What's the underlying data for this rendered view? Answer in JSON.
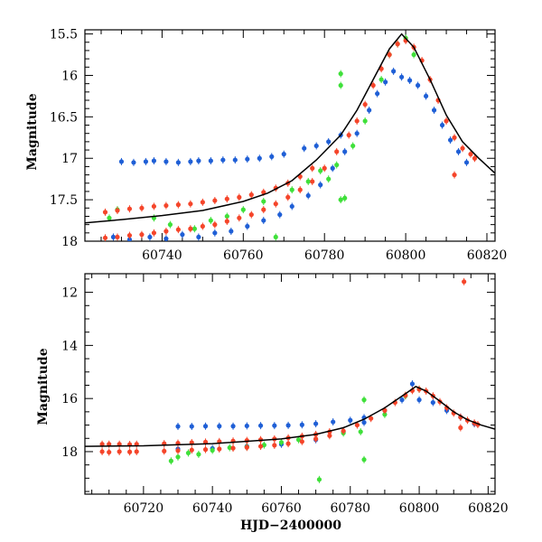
{
  "figure": {
    "xlabel": "HJD−2400000",
    "ylabel_top": "Magnitude",
    "ylabel_bottom": "Magnitude"
  },
  "chart_data": [
    {
      "type": "scatter",
      "panel": "top",
      "xlim": [
        60721,
        60822
      ],
      "ylim": [
        18.0,
        15.45
      ],
      "y_inverted": true,
      "xticks": [
        60740,
        60760,
        60780,
        60800,
        60820
      ],
      "yticks": [
        15.5,
        16,
        16.5,
        17,
        17.5,
        18
      ],
      "ylabel": "Magnitude",
      "series": [
        {
          "color": "#1f5fd6",
          "points": [
            [
              60730,
              17.04
            ],
            [
              60733,
              17.05
            ],
            [
              60736,
              17.04
            ],
            [
              60738,
              17.03
            ],
            [
              60741,
              17.04
            ],
            [
              60744,
              17.05
            ],
            [
              60747,
              17.04
            ],
            [
              60749,
              17.03
            ],
            [
              60752,
              17.03
            ],
            [
              60755,
              17.02
            ],
            [
              60758,
              17.02
            ],
            [
              60761,
              17.01
            ],
            [
              60764,
              17.0
            ],
            [
              60767,
              16.98
            ],
            [
              60770,
              16.95
            ],
            [
              60775,
              16.88
            ],
            [
              60778,
              16.85
            ],
            [
              60781,
              16.8
            ],
            [
              60784,
              16.72
            ],
            [
              60728,
              17.95
            ],
            [
              60732,
              17.98
            ],
            [
              60737,
              17.95
            ],
            [
              60741,
              17.97
            ],
            [
              60745,
              17.92
            ],
            [
              60749,
              17.95
            ],
            [
              60753,
              17.9
            ],
            [
              60757,
              17.88
            ],
            [
              60761,
              17.82
            ],
            [
              60765,
              17.75
            ],
            [
              60769,
              17.68
            ],
            [
              60772,
              17.58
            ],
            [
              60776,
              17.45
            ],
            [
              60779,
              17.32
            ],
            [
              60782,
              17.12
            ],
            [
              60785,
              16.92
            ],
            [
              60788,
              16.7
            ],
            [
              60791,
              16.42
            ],
            [
              60793,
              16.22
            ],
            [
              60795,
              16.08
            ],
            [
              60797,
              15.95
            ],
            [
              60799,
              16.02
            ],
            [
              60801,
              16.06
            ],
            [
              60803,
              16.12
            ],
            [
              60805,
              16.25
            ],
            [
              60807,
              16.42
            ],
            [
              60809,
              16.6
            ],
            [
              60811,
              16.78
            ],
            [
              60813,
              16.92
            ],
            [
              60815,
              17.05
            ]
          ]
        },
        {
          "color": "#3fe03a",
          "points": [
            [
              60727,
              17.72
            ],
            [
              60729,
              17.62
            ],
            [
              60738,
              17.72
            ],
            [
              60742,
              17.8
            ],
            [
              60748,
              17.85
            ],
            [
              60752,
              17.75
            ],
            [
              60756,
              17.7
            ],
            [
              60760,
              17.62
            ],
            [
              60765,
              17.52
            ],
            [
              60768,
              17.95
            ],
            [
              60772,
              17.38
            ],
            [
              60776,
              17.28
            ],
            [
              60779,
              17.15
            ],
            [
              60781,
              17.25
            ],
            [
              60783,
              17.08
            ],
            [
              60784,
              17.5
            ],
            [
              60785,
              17.48
            ],
            [
              60784,
              16.12
            ],
            [
              60784,
              15.98
            ],
            [
              60787,
              16.85
            ],
            [
              60790,
              16.55
            ],
            [
              60794,
              16.05
            ],
            [
              60796,
              15.75
            ],
            [
              60798,
              15.62
            ],
            [
              60800,
              15.55
            ],
            [
              60802,
              15.75
            ]
          ]
        },
        {
          "color": "#f5452a",
          "points": [
            [
              60726,
              17.65
            ],
            [
              60729,
              17.63
            ],
            [
              60732,
              17.61
            ],
            [
              60735,
              17.6
            ],
            [
              60738,
              17.58
            ],
            [
              60741,
              17.57
            ],
            [
              60744,
              17.56
            ],
            [
              60747,
              17.55
            ],
            [
              60750,
              17.53
            ],
            [
              60753,
              17.51
            ],
            [
              60756,
              17.49
            ],
            [
              60759,
              17.47
            ],
            [
              60762,
              17.44
            ],
            [
              60765,
              17.41
            ],
            [
              60768,
              17.36
            ],
            [
              60771,
              17.3
            ],
            [
              60774,
              17.22
            ],
            [
              60777,
              17.12
            ],
            [
              60726,
              17.96
            ],
            [
              60729,
              17.95
            ],
            [
              60732,
              17.93
            ],
            [
              60735,
              17.92
            ],
            [
              60738,
              17.9
            ],
            [
              60741,
              17.88
            ],
            [
              60744,
              17.86
            ],
            [
              60747,
              17.85
            ],
            [
              60750,
              17.82
            ],
            [
              60753,
              17.8
            ],
            [
              60756,
              17.76
            ],
            [
              60759,
              17.72
            ],
            [
              60762,
              17.68
            ],
            [
              60765,
              17.62
            ],
            [
              60768,
              17.55
            ],
            [
              60771,
              17.47
            ],
            [
              60774,
              17.38
            ],
            [
              60777,
              17.28
            ],
            [
              60780,
              17.12
            ],
            [
              60783,
              16.92
            ],
            [
              60786,
              16.72
            ],
            [
              60788,
              16.55
            ],
            [
              60790,
              16.35
            ],
            [
              60792,
              16.12
            ],
            [
              60794,
              15.92
            ],
            [
              60796,
              15.75
            ],
            [
              60798,
              15.62
            ],
            [
              60800,
              15.58
            ],
            [
              60802,
              15.66
            ],
            [
              60804,
              15.82
            ],
            [
              60806,
              16.05
            ],
            [
              60808,
              16.3
            ],
            [
              60810,
              16.55
            ],
            [
              60812,
              16.75
            ],
            [
              60814,
              16.88
            ],
            [
              60816,
              16.95
            ],
            [
              60817,
              17.0
            ],
            [
              60812,
              17.2
            ]
          ]
        }
      ],
      "model_curve": [
        [
          60721,
          17.78
        ],
        [
          60730,
          17.74
        ],
        [
          60740,
          17.69
        ],
        [
          60750,
          17.63
        ],
        [
          60760,
          17.52
        ],
        [
          60766,
          17.42
        ],
        [
          60772,
          17.27
        ],
        [
          60778,
          17.02
        ],
        [
          60784,
          16.72
        ],
        [
          60788,
          16.42
        ],
        [
          60792,
          16.05
        ],
        [
          60796,
          15.68
        ],
        [
          60799,
          15.5
        ],
        [
          60802,
          15.66
        ],
        [
          60806,
          16.05
        ],
        [
          60810,
          16.48
        ],
        [
          60814,
          16.8
        ],
        [
          60818,
          17.0
        ],
        [
          60822,
          17.18
        ]
      ]
    },
    {
      "type": "scatter",
      "panel": "bottom",
      "xlim": [
        60703,
        60822
      ],
      "ylim": [
        19.6,
        11.3
      ],
      "y_inverted": true,
      "xticks": [
        60720,
        60740,
        60760,
        60780,
        60800,
        60820
      ],
      "yticks": [
        12,
        14,
        16,
        18
      ],
      "ylabel": "Magnitude",
      "xlabel": "HJD−2400000",
      "series": [
        {
          "color": "#1f5fd6",
          "points": [
            [
              60730,
              17.05
            ],
            [
              60734,
              17.05
            ],
            [
              60738,
              17.04
            ],
            [
              60742,
              17.04
            ],
            [
              60746,
              17.04
            ],
            [
              60750,
              17.03
            ],
            [
              60754,
              17.02
            ],
            [
              60758,
              17.02
            ],
            [
              60762,
              17.01
            ],
            [
              60766,
              16.99
            ],
            [
              60770,
              16.95
            ],
            [
              60775,
              16.88
            ],
            [
              60780,
              16.82
            ],
            [
              60784,
              16.72
            ],
            [
              60730,
              17.9
            ],
            [
              60740,
              17.88
            ],
            [
              60750,
              17.8
            ],
            [
              60760,
              17.72
            ],
            [
              60770,
              17.55
            ],
            [
              60778,
              17.25
            ],
            [
              60784,
              16.9
            ],
            [
              60790,
              16.45
            ],
            [
              60795,
              16.05
            ],
            [
              60798,
              15.45
            ],
            [
              60800,
              16.05
            ],
            [
              60804,
              16.15
            ],
            [
              60808,
              16.45
            ],
            [
              60812,
              16.7
            ],
            [
              60816,
              16.95
            ]
          ]
        },
        {
          "color": "#3fe03a",
          "points": [
            [
              60728,
              18.35
            ],
            [
              60730,
              18.2
            ],
            [
              60733,
              18.05
            ],
            [
              60736,
              18.1
            ],
            [
              60740,
              17.95
            ],
            [
              60745,
              17.85
            ],
            [
              60750,
              17.82
            ],
            [
              60755,
              17.75
            ],
            [
              60760,
              17.65
            ],
            [
              60765,
              17.55
            ],
            [
              60771,
              19.05
            ],
            [
              60778,
              17.3
            ],
            [
              60783,
              17.25
            ],
            [
              60784,
              16.05
            ],
            [
              60784,
              18.3
            ],
            [
              60790,
              16.6
            ],
            [
              60796,
              15.9
            ],
            [
              60800,
              15.65
            ]
          ]
        },
        {
          "color": "#f5452a",
          "points": [
            [
              60708,
              17.72
            ],
            [
              60710,
              17.72
            ],
            [
              60713,
              17.72
            ],
            [
              60716,
              17.73
            ],
            [
              60718,
              17.72
            ],
            [
              60708,
              18.0
            ],
            [
              60710,
              18.02
            ],
            [
              60713,
              18.0
            ],
            [
              60716,
              18.01
            ],
            [
              60718,
              18.0
            ],
            [
              60726,
              17.7
            ],
            [
              60730,
              17.68
            ],
            [
              60734,
              17.66
            ],
            [
              60738,
              17.64
            ],
            [
              60742,
              17.62
            ],
            [
              60746,
              17.6
            ],
            [
              60750,
              17.58
            ],
            [
              60754,
              17.55
            ],
            [
              60758,
              17.52
            ],
            [
              60762,
              17.48
            ],
            [
              60766,
              17.42
            ],
            [
              60770,
              17.35
            ],
            [
              60774,
              17.25
            ],
            [
              60726,
              17.98
            ],
            [
              60730,
              17.96
            ],
            [
              60734,
              17.94
            ],
            [
              60738,
              17.92
            ],
            [
              60742,
              17.9
            ],
            [
              60746,
              17.87
            ],
            [
              60750,
              17.84
            ],
            [
              60754,
              17.8
            ],
            [
              60758,
              17.76
            ],
            [
              60762,
              17.7
            ],
            [
              60766,
              17.62
            ],
            [
              60770,
              17.52
            ],
            [
              60774,
              17.4
            ],
            [
              60778,
              17.22
            ],
            [
              60782,
              17.0
            ],
            [
              60786,
              16.75
            ],
            [
              60790,
              16.45
            ],
            [
              60793,
              16.15
            ],
            [
              60796,
              15.88
            ],
            [
              60798,
              15.7
            ],
            [
              60800,
              15.65
            ],
            [
              60802,
              15.72
            ],
            [
              60804,
              15.9
            ],
            [
              60806,
              16.12
            ],
            [
              60808,
              16.35
            ],
            [
              60810,
              16.55
            ],
            [
              60812,
              16.7
            ],
            [
              60814,
              16.82
            ],
            [
              60816,
              16.92
            ],
            [
              60817,
              16.98
            ],
            [
              60812,
              17.1
            ],
            [
              60813,
              11.6
            ]
          ]
        }
      ],
      "model_curve": [
        [
          60703,
          17.8
        ],
        [
          60720,
          17.78
        ],
        [
          60740,
          17.7
        ],
        [
          60760,
          17.52
        ],
        [
          60770,
          17.35
        ],
        [
          60778,
          17.1
        ],
        [
          60784,
          16.78
        ],
        [
          60790,
          16.35
        ],
        [
          60796,
          15.82
        ],
        [
          60799,
          15.55
        ],
        [
          60802,
          15.72
        ],
        [
          60806,
          16.1
        ],
        [
          60810,
          16.5
        ],
        [
          60814,
          16.8
        ],
        [
          60818,
          17.0
        ],
        [
          60822,
          17.15
        ]
      ]
    }
  ]
}
